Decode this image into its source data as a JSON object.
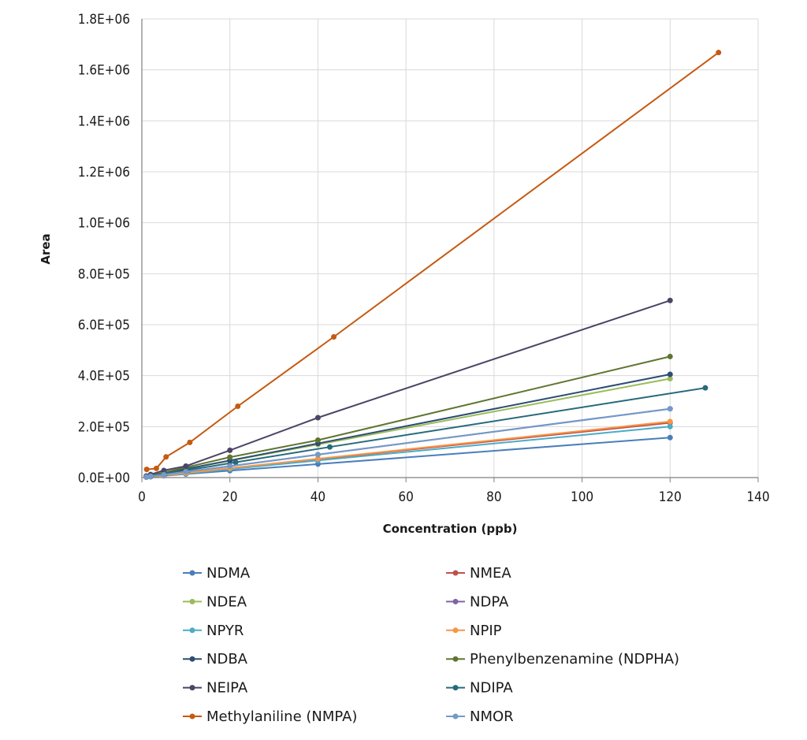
{
  "chart_data": {
    "type": "line",
    "title": "",
    "xlabel": "Concentration (ppb)",
    "ylabel": "Area",
    "xlim": [
      0,
      140
    ],
    "ylim": [
      0,
      1800000
    ],
    "xticks": [
      "0",
      "20",
      "40",
      "60",
      "80",
      "100",
      "120",
      "140"
    ],
    "yticks": [
      "0.0E+00",
      "2.0E+05",
      "4.0E+05",
      "6.0E+05",
      "8.0E+05",
      "1.0E+06",
      "1.2E+06",
      "1.4E+06",
      "1.6E+06",
      "1.8E+06"
    ],
    "grid": "vertical and horizontal",
    "legend_position": "bottom",
    "series": [
      {
        "name": "NDMA",
        "color": "#4a7ebb",
        "x": [
          1,
          2,
          5,
          10,
          20,
          40,
          120
        ],
        "y": [
          1500,
          3000,
          7000,
          14000,
          27000,
          53000,
          157000
        ]
      },
      {
        "name": "NMEA",
        "color": "#c0504d",
        "x": [
          1,
          2,
          5,
          10,
          20,
          40,
          120
        ],
        "y": [
          2000,
          4000,
          9000,
          18000,
          36000,
          72000,
          215000
        ]
      },
      {
        "name": "NDEA",
        "color": "#9bbb59",
        "x": [
          1,
          2,
          5,
          10,
          20,
          40,
          120
        ],
        "y": [
          4000,
          8000,
          17000,
          33000,
          66000,
          130000,
          388000
        ]
      },
      {
        "name": "NDPA",
        "color": "#8064a2",
        "x": [
          1,
          2,
          5,
          10,
          20,
          40,
          120
        ],
        "y": [
          2500,
          5000,
          11000,
          22000,
          45000,
          90000,
          270000
        ]
      },
      {
        "name": "NPYR",
        "color": "#4bacc6",
        "x": [
          1,
          2,
          5,
          10,
          20,
          40,
          120
        ],
        "y": [
          2000,
          3500,
          8000,
          16000,
          33000,
          67000,
          200000
        ]
      },
      {
        "name": "NPIP",
        "color": "#f79646",
        "x": [
          1,
          2,
          5,
          10,
          20,
          40,
          120
        ],
        "y": [
          2000,
          4000,
          9000,
          18000,
          37000,
          74000,
          220000
        ]
      },
      {
        "name": "NDBA",
        "color": "#2c4d75",
        "x": [
          1,
          2,
          5,
          10,
          20,
          40,
          120
        ],
        "y": [
          3500,
          7000,
          17000,
          34000,
          67000,
          134000,
          405000
        ]
      },
      {
        "name": "Phenylbenzenamine (NDPHA)",
        "color": "#5f7530",
        "x": [
          1,
          2,
          5,
          10,
          20,
          40,
          120
        ],
        "y": [
          4000,
          8000,
          20000,
          40000,
          80000,
          147000,
          475000
        ]
      },
      {
        "name": "NEIPA",
        "color": "#4d4466",
        "x": [
          1,
          2,
          5,
          10,
          20,
          40,
          120
        ],
        "y": [
          6000,
          12000,
          28000,
          45000,
          107000,
          235000,
          695000
        ]
      },
      {
        "name": "NDIPA",
        "color": "#276a7c",
        "x": [
          1.1,
          2.1,
          5.3,
          10.7,
          21.3,
          42.7,
          128
        ],
        "y": [
          3000,
          6000,
          15000,
          30000,
          60000,
          120000,
          352000
        ]
      },
      {
        "name": "Methylaniline (NMPA)",
        "color": "#c55a11",
        "x": [
          1.1,
          3.3,
          5.5,
          10.9,
          21.8,
          43.6,
          131
        ],
        "y": [
          32000,
          36000,
          81000,
          138000,
          280000,
          552000,
          1668000
        ]
      },
      {
        "name": "NMOR",
        "color": "#729aca",
        "x": [
          1,
          2,
          5,
          10,
          20,
          40,
          120
        ],
        "y": [
          2500,
          5000,
          11000,
          23000,
          45000,
          90000,
          270000
        ]
      }
    ]
  }
}
